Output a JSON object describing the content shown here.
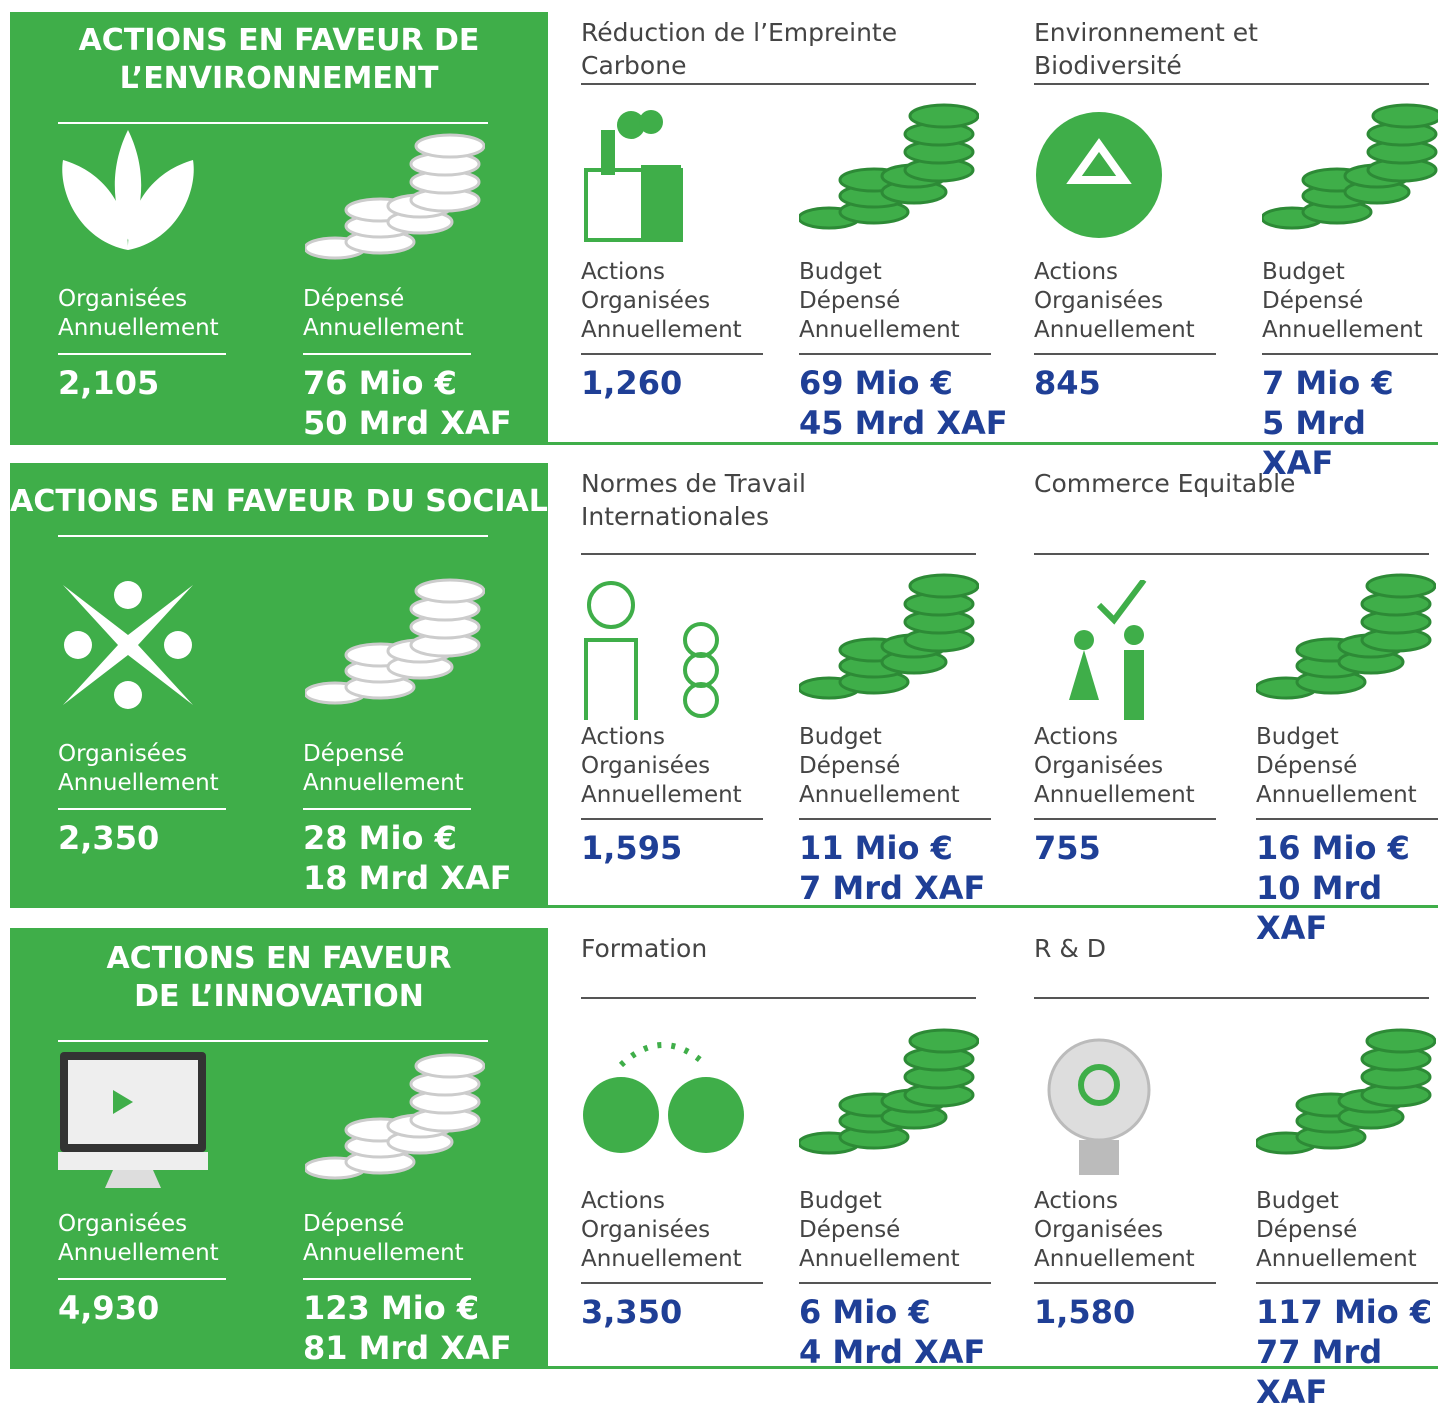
{
  "labels": {
    "panel_actions": [
      "Organisées",
      "Annuellement"
    ],
    "panel_budget": [
      "Dépensé",
      "Annuellement"
    ],
    "sub_actions": [
      "Actions",
      "Organisées",
      "Annuellement"
    ],
    "sub_budget": [
      "Budget",
      "Dépensé",
      "Annuellement"
    ]
  },
  "rows": [
    {
      "title": [
        "ACTIONS EN FAVEUR DE",
        "L’ENVIRONNEMENT"
      ],
      "actions": "2,105",
      "budget": [
        "76 Mio €",
        "50 Mrd XAF"
      ],
      "items": [
        {
          "title": [
            "Réduction de l’Empreinte",
            "Carbone"
          ],
          "actions": "1,260",
          "budget": [
            "69 Mio €",
            "45 Mrd XAF"
          ]
        },
        {
          "title": [
            "Environnement et",
            "Biodiversité"
          ],
          "actions": "845",
          "budget": [
            "7 Mio €",
            "5 Mrd XAF"
          ]
        }
      ]
    },
    {
      "title": [
        "ACTIONS EN FAVEUR DU SOCIAL"
      ],
      "actions": "2,350",
      "budget": [
        "28 Mio €",
        "18 Mrd XAF"
      ],
      "items": [
        {
          "title": [
            "Normes de Travail",
            "Internationales"
          ],
          "actions": "1,595",
          "budget": [
            "11 Mio €",
            "7 Mrd XAF"
          ]
        },
        {
          "title": [
            "Commerce Equitable"
          ],
          "actions": "755",
          "budget": [
            "16 Mio €",
            "10 Mrd XAF"
          ]
        }
      ]
    },
    {
      "title": [
        "ACTIONS EN FAVEUR",
        "DE L’INNOVATION"
      ],
      "actions": "4,930",
      "budget": [
        "123 Mio €",
        "81 Mrd XAF"
      ],
      "items": [
        {
          "title": [
            "Formation"
          ],
          "actions": "3,350",
          "budget": [
            "6 Mio €",
            "4 Mrd XAF"
          ]
        },
        {
          "title": [
            "R & D"
          ],
          "actions": "1,580",
          "budget": [
            "117 Mio €",
            "77 Mrd XAF"
          ]
        }
      ]
    }
  ]
}
